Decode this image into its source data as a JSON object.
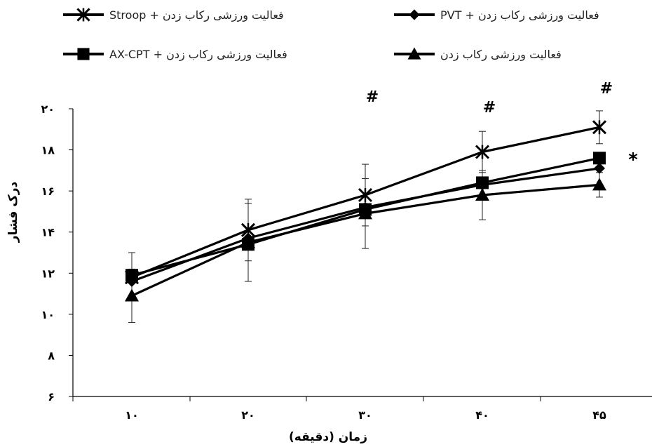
{
  "chart_data": {
    "type": "line",
    "x_categories": [
      "۱۰",
      "۲۰",
      "۳۰",
      "۴۰",
      "۴۵"
    ],
    "xlabel": "زمان (دقیقه)",
    "ylabel": "درک فشار",
    "ylim": [
      6,
      20
    ],
    "y_ticks": [
      6,
      8,
      10,
      12,
      14,
      16,
      18,
      20
    ],
    "y_tick_labels": [
      "۶",
      "۸",
      "۱۰",
      "۱۲",
      "۱۴",
      "۱۶",
      "۱۸",
      "۲۰"
    ],
    "grid": false,
    "legend_position": "top",
    "series": [
      {
        "name": "فعالیت ورزشی رکاب زدن + Stroop",
        "marker": "star",
        "values": [
          11.8,
          14.1,
          15.8,
          17.9,
          19.1
        ],
        "error": [
          null,
          1.5,
          1.5,
          1.0,
          0.8
        ]
      },
      {
        "name": "فعالیت ورزشی رکاب زدن + PVT",
        "marker": "diamond",
        "values": [
          11.6,
          13.7,
          15.2,
          16.3,
          17.1
        ],
        "error": [
          null,
          null,
          null,
          null,
          null
        ]
      },
      {
        "name": "فعالیت ورزشی رکاب زدن + AX-CPT",
        "marker": "square",
        "values": [
          11.9,
          13.4,
          15.1,
          16.4,
          17.6
        ],
        "error": [
          1.1,
          null,
          null,
          null,
          null
        ]
      },
      {
        "name": "فعالیت ورزشی رکاب زدن",
        "marker": "triangle",
        "values": [
          10.9,
          13.5,
          14.9,
          15.8,
          16.3
        ],
        "error": [
          1.3,
          1.9,
          1.7,
          1.2,
          0.6
        ]
      }
    ],
    "annotations": [
      {
        "text": "#",
        "x_index": 2
      },
      {
        "text": "#",
        "x_index": 3
      },
      {
        "text": "#",
        "x_index": 4
      }
    ],
    "side_annotation": "*"
  }
}
